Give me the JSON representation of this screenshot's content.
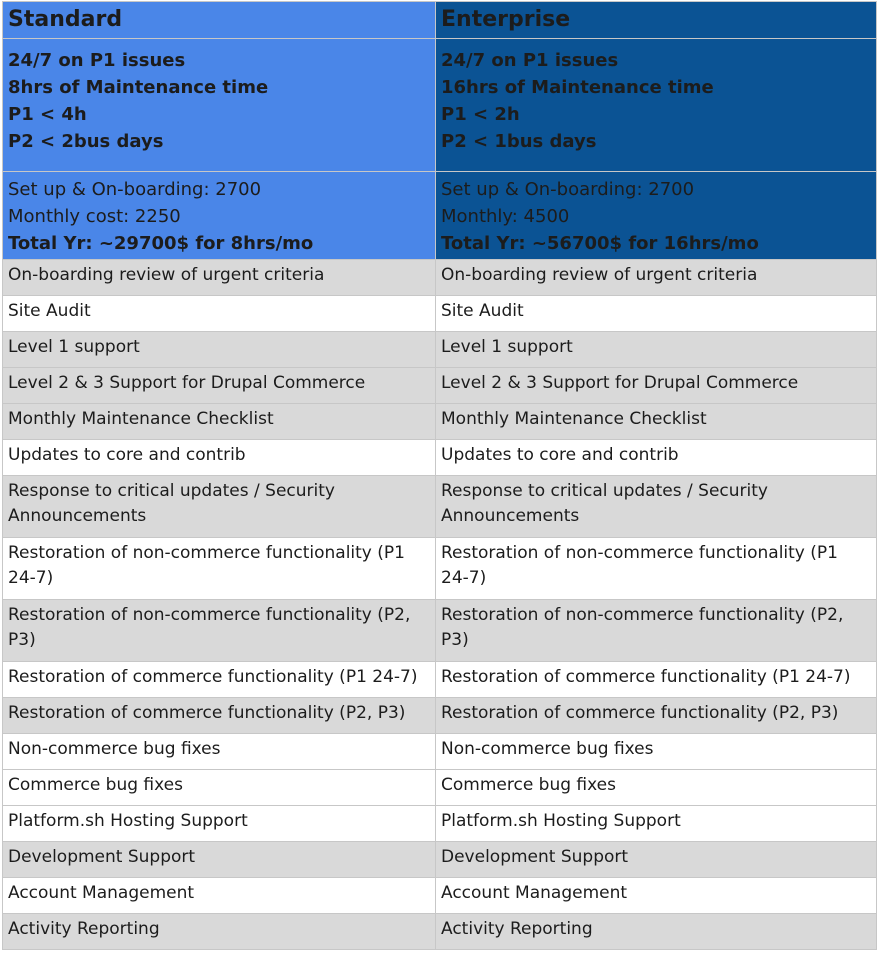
{
  "plans": {
    "standard": {
      "name": "Standard",
      "sla": [
        "24/7 on P1 issues",
        "8hrs of Maintenance time",
        "P1 < 4h",
        "P2 < 2bus days"
      ],
      "setup": "Set up & On-boarding: 2700",
      "monthly": "Monthly cost: 2250",
      "total": "Total Yr: ~29700$ for 8hrs/mo",
      "color": "#4a86e8"
    },
    "enterprise": {
      "name": "Enterprise",
      "sla": [
        "24/7 on P1 issues",
        "16hrs of Maintenance time",
        "P1 < 2h",
        "P2 < 1bus days"
      ],
      "setup": "Set up & On-boarding: 2700",
      "monthly": "Monthly: 4500",
      "total": "Total Yr: ~56700$ for 16hrs/mo",
      "color": "#0b5394"
    }
  },
  "features": [
    "On-boarding review of urgent criteria",
    "Site Audit",
    "Level 1 support",
    "Level 2 & 3 Support for Drupal Commerce",
    "Monthly Maintenance Checklist",
    "Updates to core and contrib",
    "Response to critical updates / Security Announcements",
    "Restoration of non-commerce functionality (P1 24-7)",
    "Restoration of non-commerce functionality (P2, P3)",
    "Restoration of commerce functionality (P1 24-7)",
    "Restoration of commerce functionality (P2, P3)",
    "Non-commerce bug fixes",
    "Commerce bug fixes",
    "Platform.sh Hosting Support",
    "Development Support",
    "Account Management",
    "Activity Reporting"
  ]
}
